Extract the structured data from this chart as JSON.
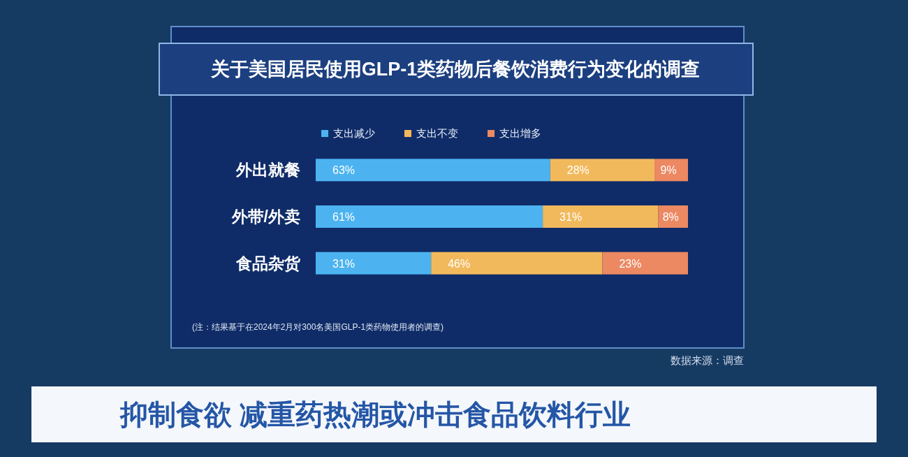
{
  "chart_data": {
    "type": "bar",
    "orientation": "horizontal",
    "stacked": true,
    "title": "关于美国居民使用GLP-1类药物后餐饮消费行为变化的调查",
    "categories": [
      "外出就餐",
      "外带/外卖",
      "食品杂货"
    ],
    "series": [
      {
        "name": "支出减少",
        "color": "#4cb3f0",
        "values": [
          63,
          61,
          31
        ],
        "value_labels": [
          "63%",
          "61%",
          "31%"
        ]
      },
      {
        "name": "支出不变",
        "color": "#f2b95c",
        "values": [
          28,
          31,
          46
        ],
        "value_labels": [
          "28%",
          "31%",
          "46%"
        ]
      },
      {
        "name": "支出增多",
        "color": "#ec8862",
        "values": [
          9,
          8,
          23
        ],
        "value_labels": [
          "9%",
          "8%",
          "23%"
        ]
      }
    ],
    "legend": "top",
    "annotations": [
      "(注：结果基于在2024年2月对300名美国GLP-1类药物使用者的调查)",
      "数据来源：调查",
      "抑制食欲 减重药热潮或冲击食品饮料行业"
    ]
  }
}
